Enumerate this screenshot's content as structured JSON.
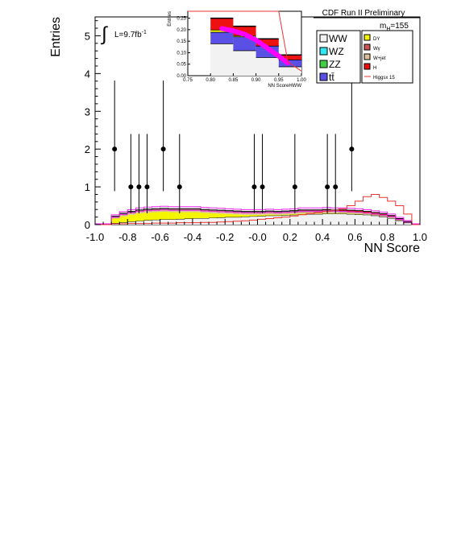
{
  "chart_data": [
    {
      "type": "histogram",
      "role": "main",
      "xlabel": "NN Score",
      "ylabel": "Entries",
      "xlim": [
        -1.0,
        1.0
      ],
      "ylim": [
        0,
        5.5
      ],
      "xticks": [
        "-1.0",
        "-0.8",
        "-0.6",
        "-0.4",
        "-0.2",
        "-0.0",
        "0.2",
        "0.4",
        "0.6",
        "0.8",
        "1.0"
      ],
      "yticks": [
        "0",
        "1",
        "2",
        "3",
        "4",
        "5"
      ],
      "grid": false,
      "annotations": {
        "experiment": "CDF Run II Preliminary",
        "mass": "m",
        "mass_sub": "H",
        "mass_value": "=155",
        "lumi": "L=9.7fb",
        "lumi_sup": "-1",
        "integral": "∫"
      },
      "legend_placement": "top-right",
      "legend": [
        {
          "label": "WW",
          "color": "#f2f2f2",
          "column": 1
        },
        {
          "label": "WZ",
          "color": "#33e6f2",
          "column": 1
        },
        {
          "label": "ZZ",
          "color": "#44cc44",
          "column": 1
        },
        {
          "label": "tt̄",
          "color": "#5a50e6",
          "column": 1
        },
        {
          "label": "DY",
          "color": "#f5f500",
          "column": 2
        },
        {
          "label": "Wγ",
          "color": "#cc5555",
          "column": 2
        },
        {
          "label": "W+jet",
          "color": "#dcc09a",
          "column": 2
        },
        {
          "label": "H",
          "color": "#ee1111",
          "column": 2
        },
        {
          "label": "Higgsx 15",
          "color": "#ee3333",
          "column": 2,
          "style": "line"
        }
      ],
      "bin_edges": [
        -1.0,
        -0.9,
        -0.85,
        -0.8,
        -0.75,
        -0.7,
        -0.65,
        -0.6,
        -0.55,
        -0.5,
        -0.45,
        -0.4,
        -0.35,
        -0.3,
        -0.25,
        -0.2,
        -0.15,
        -0.1,
        -0.05,
        0.0,
        0.05,
        0.1,
        0.15,
        0.2,
        0.25,
        0.3,
        0.35,
        0.4,
        0.45,
        0.5,
        0.55,
        0.6,
        0.65,
        0.7,
        0.75,
        0.8,
        0.85,
        0.9,
        0.95,
        1.0
      ],
      "series": [
        {
          "name": "WW",
          "color": "#f2f2f2",
          "values": [
            0,
            0.04,
            0.06,
            0.08,
            0.1,
            0.12,
            0.13,
            0.14,
            0.14,
            0.15,
            0.16,
            0.17,
            0.17,
            0.18,
            0.19,
            0.2,
            0.2,
            0.21,
            0.22,
            0.23,
            0.24,
            0.24,
            0.25,
            0.26,
            0.27,
            0.28,
            0.28,
            0.29,
            0.29,
            0.29,
            0.28,
            0.27,
            0.26,
            0.24,
            0.21,
            0.17,
            0.11,
            0.05,
            0
          ]
        },
        {
          "name": "DY",
          "color": "#f5f500",
          "values": [
            0,
            0.12,
            0.16,
            0.18,
            0.2,
            0.2,
            0.2,
            0.2,
            0.19,
            0.18,
            0.17,
            0.16,
            0.14,
            0.12,
            0.1,
            0.08,
            0.07,
            0.05,
            0.04,
            0.03,
            0.03,
            0.02,
            0.02,
            0.02,
            0.02,
            0.01,
            0.01,
            0.01,
            0.01,
            0.01,
            0.01,
            0.01,
            0,
            0,
            0,
            0,
            0,
            0,
            0
          ]
        },
        {
          "name": "W+jet",
          "color": "#dcc09a",
          "values": [
            0,
            0.02,
            0.03,
            0.04,
            0.04,
            0.04,
            0.04,
            0.04,
            0.04,
            0.04,
            0.04,
            0.04,
            0.04,
            0.04,
            0.04,
            0.04,
            0.04,
            0.04,
            0.04,
            0.04,
            0.04,
            0.04,
            0.04,
            0.04,
            0.04,
            0.04,
            0.04,
            0.04,
            0.04,
            0.03,
            0.03,
            0.03,
            0.03,
            0.02,
            0.02,
            0.02,
            0.01,
            0.01,
            0
          ]
        },
        {
          "name": "Wγ",
          "color": "#cc5555",
          "values": [
            0,
            0.02,
            0.03,
            0.03,
            0.03,
            0.03,
            0.03,
            0.03,
            0.03,
            0.03,
            0.03,
            0.03,
            0.03,
            0.03,
            0.03,
            0.03,
            0.03,
            0.03,
            0.03,
            0.03,
            0.03,
            0.03,
            0.03,
            0.03,
            0.03,
            0.03,
            0.03,
            0.03,
            0.02,
            0.02,
            0.02,
            0.02,
            0.02,
            0.02,
            0.02,
            0.01,
            0.01,
            0.01,
            0
          ]
        },
        {
          "name": "tt̄",
          "color": "#5a50e6",
          "values": [
            0,
            0.01,
            0.01,
            0.01,
            0.01,
            0.01,
            0.01,
            0.01,
            0.01,
            0.01,
            0.01,
            0.01,
            0.01,
            0.01,
            0.01,
            0.01,
            0.01,
            0.01,
            0.01,
            0.01,
            0.01,
            0.01,
            0.01,
            0.01,
            0.01,
            0.01,
            0.01,
            0.01,
            0.01,
            0.01,
            0.01,
            0.01,
            0.01,
            0.01,
            0.01,
            0.01,
            0.01,
            0,
            0
          ]
        },
        {
          "name": "H",
          "color": "#ee1111",
          "values": [
            0,
            0.01,
            0.01,
            0.01,
            0.01,
            0.01,
            0.01,
            0.01,
            0.01,
            0.01,
            0.01,
            0.01,
            0.01,
            0.01,
            0.01,
            0.01,
            0.01,
            0.01,
            0.01,
            0.01,
            0.01,
            0.01,
            0.01,
            0.01,
            0.02,
            0.02,
            0.02,
            0.02,
            0.02,
            0.03,
            0.03,
            0.03,
            0.03,
            0.03,
            0.03,
            0.03,
            0.02,
            0.01,
            0
          ]
        }
      ],
      "signal_line": {
        "name": "Higgsx 15",
        "color": "#ee3333",
        "values": [
          0,
          0.02,
          0.02,
          0.03,
          0.03,
          0.03,
          0.04,
          0.04,
          0.04,
          0.05,
          0.05,
          0.05,
          0.06,
          0.06,
          0.07,
          0.08,
          0.09,
          0.1,
          0.12,
          0.14,
          0.16,
          0.18,
          0.2,
          0.23,
          0.26,
          0.29,
          0.32,
          0.35,
          0.38,
          0.42,
          0.5,
          0.62,
          0.74,
          0.8,
          0.72,
          0.62,
          0.5,
          0.28,
          0
        ]
      },
      "uncertainty_band_color": "#ee22ee",
      "data_points": {
        "x": [
          -0.88,
          -0.78,
          -0.73,
          -0.68,
          -0.58,
          -0.48,
          -0.02,
          0.03,
          0.23,
          0.43,
          0.48,
          0.58
        ],
        "y": [
          2,
          1,
          1,
          1,
          2,
          1,
          1,
          1,
          1,
          1,
          1,
          2
        ]
      }
    },
    {
      "type": "histogram",
      "role": "inset",
      "xlabel": "NN ScoreHWW",
      "ylabel": "Entries",
      "xlim": [
        0.75,
        1.0
      ],
      "ylim": [
        0,
        0.28
      ],
      "xticks": [
        "0.75",
        "0.80",
        "0.85",
        "0.90",
        "0.95",
        "1.00"
      ],
      "yticks": [
        "0.00",
        "0.05",
        "0.10",
        "0.15",
        "0.20",
        "0.25"
      ],
      "bin_edges": [
        0.8,
        0.85,
        0.9,
        0.95,
        1.0
      ],
      "series": [
        {
          "name": "WW",
          "color": "#f2f2f2",
          "values": [
            0.14,
            0.11,
            0.08,
            0.04
          ]
        },
        {
          "name": "tt̄",
          "color": "#5a50e6",
          "values": [
            0.05,
            0.06,
            0.05,
            0.03
          ]
        },
        {
          "name": "DY",
          "color": "#f5f500",
          "values": [
            0.01,
            0.005,
            0.0,
            0.0
          ]
        },
        {
          "name": "H",
          "color": "#ee1111",
          "values": [
            0.05,
            0.04,
            0.03,
            0.02
          ]
        }
      ],
      "signal_line": {
        "name": "Higgsx 15",
        "color": "#ee3333",
        "x": [
          0.75,
          0.8,
          0.85,
          0.9,
          0.92,
          0.95,
          0.97,
          1.0
        ],
        "y": [
          0.28,
          0.28,
          0.28,
          0.28,
          0.28,
          0.28,
          0.06,
          0.02
        ]
      },
      "uncertainty_band": {
        "color": "#ff00ff",
        "x": [
          0.825,
          0.85,
          0.875,
          0.9,
          0.925,
          0.95,
          0.97
        ],
        "y": [
          0.205,
          0.195,
          0.18,
          0.155,
          0.12,
          0.085,
          0.055
        ]
      }
    }
  ]
}
